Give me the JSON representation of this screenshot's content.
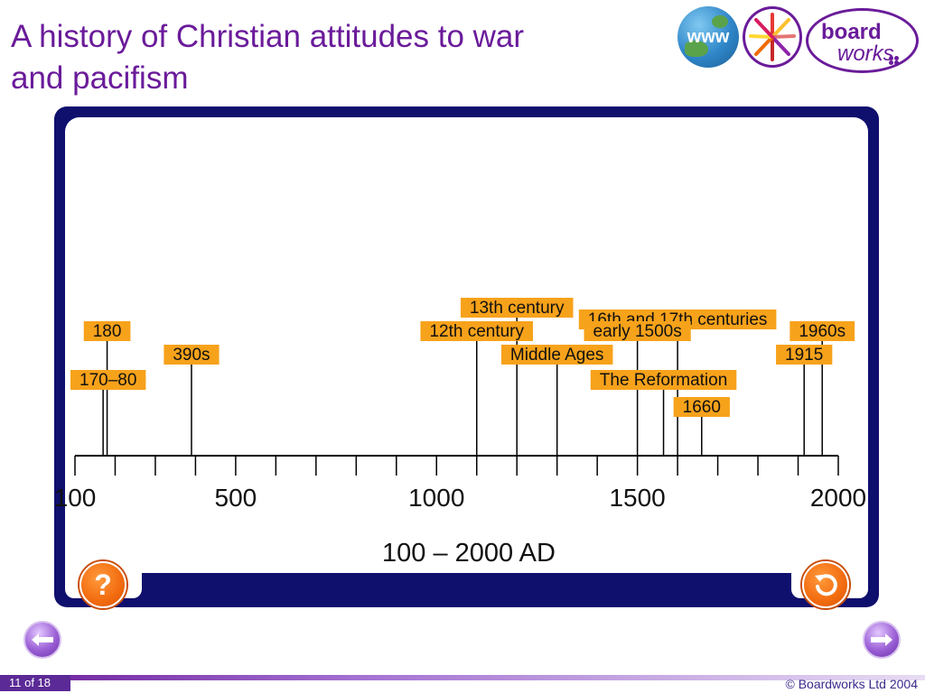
{
  "slide": {
    "title_line1": "A history of Christian attitudes to war",
    "title_line2": "and pacifism"
  },
  "logos": {
    "www_label": "www",
    "board_line1": "board",
    "board_line2": "works"
  },
  "timeline": {
    "axis_title": "100 – 2000 AD",
    "year_min": 100,
    "year_max": 2000,
    "tick_step": 100,
    "major_labels": [
      {
        "year": 100,
        "text": "100"
      },
      {
        "year": 500,
        "text": "500"
      },
      {
        "year": 1000,
        "text": "1000"
      },
      {
        "year": 1500,
        "text": "1500"
      },
      {
        "year": 2000,
        "text": "2000"
      }
    ],
    "events": [
      {
        "label": "180",
        "year": 180,
        "level": 1
      },
      {
        "label": "170–80",
        "year": 170,
        "level": 3
      },
      {
        "label": "390s",
        "year": 390,
        "level": 2
      },
      {
        "label": "13th century",
        "year": 1200,
        "level": 0
      },
      {
        "label": "12th century",
        "year": 1100,
        "level": 1
      },
      {
        "label": "Middle Ages",
        "year": 1300,
        "level": 2
      },
      {
        "label": "16th and 17th centuries",
        "year": 1600,
        "level": 0.5
      },
      {
        "label": "early 1500s",
        "year": 1500,
        "level": 1
      },
      {
        "label": "The Reformation",
        "year": 1565,
        "level": 3
      },
      {
        "label": "1660",
        "year": 1660,
        "level": 4
      },
      {
        "label": "1960s",
        "year": 1960,
        "level": 1
      },
      {
        "label": "1915",
        "year": 1915,
        "level": 2
      }
    ],
    "label_color": "#f7a21b",
    "line_color": "#000000"
  },
  "controls": {
    "help_label": "?",
    "reset_icon": "reset-icon",
    "prev_icon": "prev-arrow-icon",
    "next_icon": "next-arrow-icon"
  },
  "footer": {
    "slide_number": "11 of 18",
    "copyright": "© Boardworks Ltd 2004"
  }
}
